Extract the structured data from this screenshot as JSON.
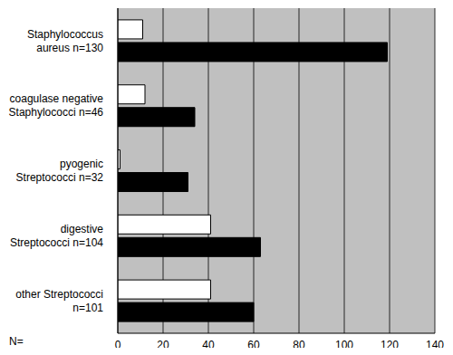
{
  "chart_data": {
    "type": "bar",
    "orientation": "horizontal",
    "categories": [
      "Staphylococcus aureus n=130",
      "coagulase negative Staphylococci n=46",
      "pyogenic Streptococci n=32",
      "digestive Streptococci n=104",
      "other Streptococci n=101"
    ],
    "series": [
      {
        "color": "#ffffff",
        "values": [
          11,
          12,
          1,
          41,
          41
        ]
      },
      {
        "color": "#000000",
        "values": [
          119,
          34,
          31,
          63,
          60
        ]
      }
    ],
    "xlabel": "N=",
    "xlim": [
      0,
      140
    ],
    "xticks": [
      0,
      20,
      40,
      60,
      80,
      100,
      120,
      140
    ],
    "grid": true
  }
}
